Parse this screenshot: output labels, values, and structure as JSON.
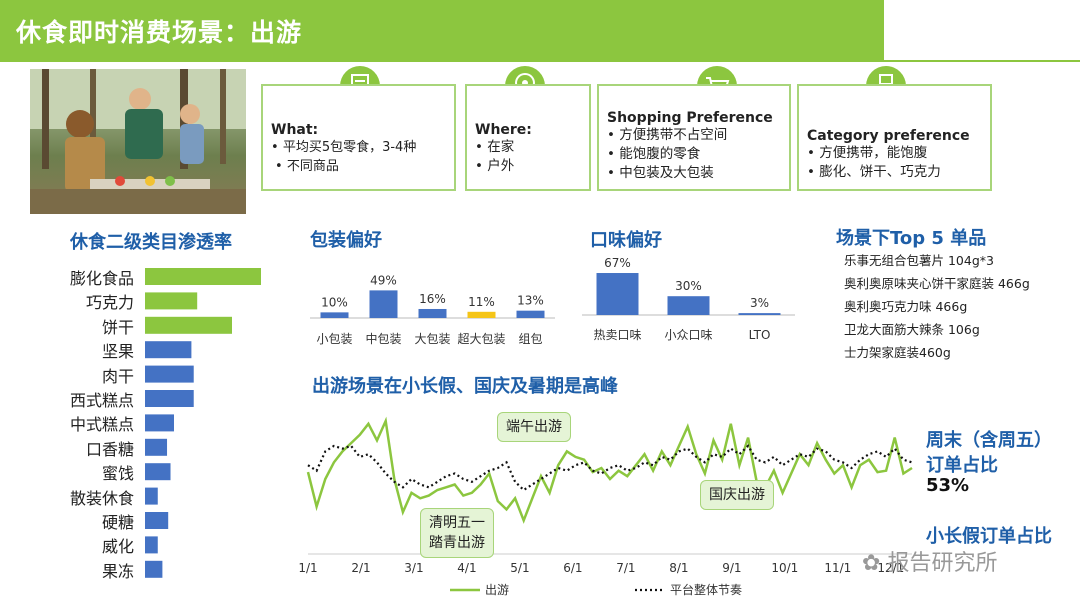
{
  "header": {
    "title": "休食即时消费场景：出游"
  },
  "cards": {
    "what": {
      "title": "What:",
      "items": [
        "平均买5包零食，3-4种",
        "不同商品"
      ]
    },
    "where": {
      "title": "Where:",
      "items": [
        "在家",
        "户外"
      ]
    },
    "shopping": {
      "title": "Shopping Preference",
      "items": [
        "方便携带不占空间",
        "能饱腹的零食",
        "中包装及大包装"
      ]
    },
    "category": {
      "title": "Category preference",
      "items": [
        "方便携带，能饱腹",
        "膨化、饼干、巧克力"
      ]
    }
  },
  "icons": {
    "what": "list-icon",
    "where": "location-pin-icon",
    "shopping": "shopping-cart-icon",
    "category": "food-bowl-icon"
  },
  "colors": {
    "green": "#8cc63f",
    "blue": "#4472c4",
    "yellow": "#f5c518",
    "title_blue": "#1f5fa8"
  },
  "sections": {
    "penetration": "休食二级类目渗透率",
    "packaging": "包装偏好",
    "flavor": "口味偏好",
    "top5": "场景下Top 5 单品",
    "trend": "出游场景在小长假、国庆及暑期是高峰"
  },
  "top5_items": [
    "乐事无组合包薯片 104g*3",
    "奥利奥原味夹心饼干家庭装 466g",
    "奥利奥巧克力味 466g",
    "卫龙大面筋大辣条 106g",
    "士力架家庭装460g"
  ],
  "notes": {
    "weekend_label_1": "周末（含周五）",
    "weekend_label_2": "订单占比",
    "weekend_value": "53%",
    "holiday_label": "小长假订单占比"
  },
  "callouts": {
    "dragon_boat": "端午出游",
    "qingming_1": "清明五一",
    "qingming_2": "踏青出游",
    "national_day": "国庆出游"
  },
  "watermark": "报告研究所",
  "chart_data": [
    {
      "type": "bar",
      "orientation": "horizontal",
      "title": "休食二级类目渗透率",
      "categories": [
        "膨化食品",
        "巧克力",
        "饼干",
        "坚果",
        "肉干",
        "西式糕点",
        "中式糕点",
        "口香糖",
        "蜜饯",
        "散装休食",
        "硬糖",
        "威化",
        "果冻"
      ],
      "values": [
        100,
        45,
        75,
        40,
        42,
        42,
        25,
        19,
        22,
        11,
        20,
        11,
        15
      ],
      "highlight": [
        "膨化食品",
        "巧克力",
        "饼干"
      ],
      "xlim": [
        0,
        100
      ]
    },
    {
      "type": "bar",
      "title": "包装偏好",
      "categories": [
        "小包装",
        "中包装",
        "大包装",
        "超大包装",
        "组包"
      ],
      "values": [
        10,
        49,
        16,
        11,
        13
      ],
      "labels": [
        "10%",
        "49%",
        "16%",
        "11%",
        "13%"
      ],
      "highlight": [
        "超大包装"
      ],
      "ylim": [
        0,
        55
      ]
    },
    {
      "type": "bar",
      "title": "口味偏好",
      "categories": [
        "热卖口味",
        "小众口味",
        "LTO"
      ],
      "values": [
        67,
        30,
        3
      ],
      "labels": [
        "67%",
        "30%",
        "3%"
      ],
      "ylim": [
        0,
        75
      ]
    },
    {
      "type": "line",
      "title": "出游场景在小长假、国庆及暑期是高峰",
      "x_ticks": [
        "1/1",
        "2/1",
        "3/1",
        "4/1",
        "5/1",
        "6/1",
        "7/1",
        "8/1",
        "9/1",
        "10/1",
        "11/1",
        "12/1"
      ],
      "ylim": [
        0,
        100
      ],
      "series": [
        {
          "name": "出游",
          "style": "solid",
          "color": "#8cc63f",
          "values": [
            55,
            30,
            50,
            62,
            70,
            76,
            82,
            90,
            78,
            92,
            50,
            26,
            40,
            36,
            38,
            42,
            44,
            46,
            38,
            40,
            46,
            54,
            34,
            28,
            36,
            20,
            36,
            52,
            40,
            60,
            70,
            66,
            64,
            55,
            58,
            50,
            56,
            52,
            60,
            68,
            56,
            70,
            60,
            74,
            88,
            68,
            54,
            78,
            64,
            90,
            60,
            80,
            48,
            44,
            56,
            40,
            54,
            68,
            60,
            76,
            64,
            54,
            60,
            44,
            60,
            64,
            55,
            56,
            80,
            54,
            58
          ]
        },
        {
          "name": "平台整体节奏",
          "style": "dotted",
          "color": "#111111",
          "values": [
            60,
            56,
            70,
            74,
            72,
            74,
            66,
            68,
            62,
            54,
            48,
            44,
            50,
            46,
            44,
            48,
            52,
            54,
            50,
            48,
            52,
            56,
            58,
            62,
            48,
            42,
            46,
            50,
            54,
            58,
            56,
            60,
            62,
            56,
            54,
            58,
            60,
            56,
            58,
            62,
            60,
            66,
            64,
            70,
            72,
            66,
            62,
            68,
            66,
            72,
            68,
            74,
            64,
            62,
            66,
            60,
            64,
            68,
            66,
            72,
            70,
            64,
            62,
            58,
            64,
            68,
            70,
            66,
            72,
            64,
            62
          ]
        }
      ]
    }
  ]
}
